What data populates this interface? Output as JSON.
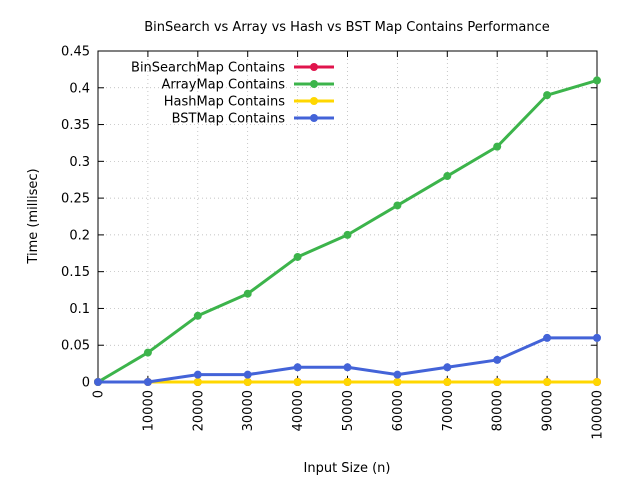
{
  "chart_data": {
    "type": "line",
    "title": "BinSearch vs Array vs Hash vs BST Map Contains Performance",
    "xlabel": "Input Size (n)",
    "ylabel": "Time (millisec)",
    "xlim": [
      0,
      100000
    ],
    "ylim": [
      0,
      0.45
    ],
    "x_ticks": [
      "0",
      "10000",
      "20000",
      "30000",
      "40000",
      "50000",
      "60000",
      "70000",
      "80000",
      "90000",
      "100000"
    ],
    "y_ticks": [
      "0",
      "0.05",
      "0.1",
      "0.15",
      "0.2",
      "0.25",
      "0.3",
      "0.35",
      "0.4",
      "0.45"
    ],
    "grid": true,
    "legend_position": "top-left",
    "x": [
      0,
      10000,
      20000,
      30000,
      40000,
      50000,
      60000,
      70000,
      80000,
      90000,
      100000
    ],
    "series": [
      {
        "name": "BinSearchMap Contains",
        "color": "#e0144c",
        "values": [
          0,
          0,
          0,
          0,
          0,
          0,
          0,
          0,
          0,
          0,
          0
        ]
      },
      {
        "name": "ArrayMap Contains",
        "color": "#3cb44b",
        "values": [
          0,
          0.04,
          0.09,
          0.12,
          0.17,
          0.2,
          0.24,
          0.28,
          0.32,
          0.39,
          0.41
        ]
      },
      {
        "name": "HashMap Contains",
        "color": "#ffd700",
        "values": [
          0,
          0,
          0,
          0,
          0,
          0,
          0,
          0,
          0,
          0,
          0
        ]
      },
      {
        "name": "BSTMap Contains",
        "color": "#4363d8",
        "values": [
          0,
          0,
          0.01,
          0.01,
          0.02,
          0.02,
          0.01,
          0.02,
          0.03,
          0.06,
          0.06
        ]
      }
    ]
  }
}
